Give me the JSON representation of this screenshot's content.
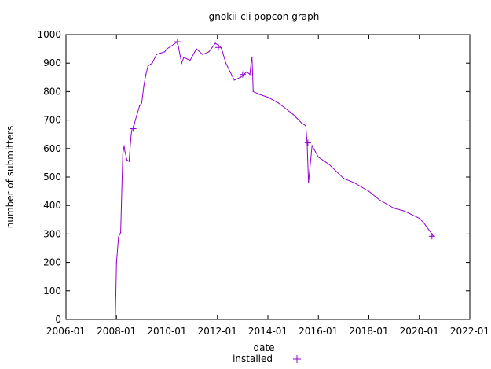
{
  "chart_data": {
    "type": "line",
    "title": "gnokii-cli popcon graph",
    "xlabel": "date",
    "ylabel": "number of submitters",
    "xlim": [
      "2006-01",
      "2022-01"
    ],
    "ylim": [
      0,
      1000
    ],
    "x_ticks": [
      "2006-01",
      "2008-01",
      "2010-01",
      "2012-01",
      "2014-01",
      "2016-01",
      "2018-01",
      "2020-01",
      "2022-01"
    ],
    "y_ticks": [
      0,
      100,
      200,
      300,
      400,
      500,
      600,
      700,
      800,
      900,
      1000
    ],
    "grid": false,
    "legend_position": "bottom-center",
    "series": [
      {
        "name": "installed",
        "color": "#9400d3",
        "marker": "plus",
        "x": [
          "2007-12-15",
          "2008-01-01",
          "2008-02-01",
          "2008-03-01",
          "2008-04-01",
          "2008-04-20",
          "2008-05-01",
          "2008-06-01",
          "2008-07-01",
          "2008-08-01",
          "2008-08-15",
          "2008-09-01",
          "2008-10-01",
          "2008-12-01",
          "2009-01-01",
          "2009-02-01",
          "2009-03-01",
          "2009-04-01",
          "2009-06-01",
          "2009-08-01",
          "2009-10-01",
          "2009-12-01",
          "2010-01-01",
          "2010-03-01",
          "2010-06-01",
          "2010-08-01",
          "2010-09-01",
          "2010-12-01",
          "2011-03-01",
          "2011-06-01",
          "2011-09-01",
          "2011-12-01",
          "2012-02-01",
          "2012-03-01",
          "2012-05-01",
          "2012-07-01",
          "2012-09-01",
          "2012-12-01",
          "2013-03-01",
          "2013-04-15",
          "2013-05-01",
          "2013-05-15",
          "2013-06-01",
          "2013-09-01",
          "2014-01-01",
          "2014-06-01",
          "2015-01-01",
          "2015-05-01",
          "2015-07-01",
          "2015-07-20",
          "2015-08-10",
          "2015-10-01",
          "2016-01-01",
          "2016-06-01",
          "2017-01-01",
          "2017-06-01",
          "2018-01-01",
          "2018-06-01",
          "2019-01-01",
          "2019-06-01",
          "2020-01-01",
          "2020-03-01",
          "2020-06-01",
          "2020-08-01"
        ],
        "values": [
          0,
          200,
          290,
          305,
          580,
          610,
          590,
          560,
          555,
          650,
          670,
          670,
          700,
          750,
          760,
          820,
          860,
          890,
          900,
          930,
          935,
          940,
          950,
          960,
          975,
          900,
          920,
          910,
          950,
          930,
          940,
          970,
          960,
          950,
          900,
          870,
          840,
          850,
          870,
          860,
          900,
          920,
          800,
          790,
          780,
          760,
          720,
          690,
          680,
          620,
          480,
          610,
          570,
          545,
          495,
          480,
          450,
          420,
          390,
          380,
          355,
          340,
          310,
          290
        ]
      }
    ],
    "point_markers": [
      {
        "x": "2008-09-01",
        "y": 670
      },
      {
        "x": "2010-06-01",
        "y": 975
      },
      {
        "x": "2012-01-15",
        "y": 955
      },
      {
        "x": "2013-01-01",
        "y": 860
      },
      {
        "x": "2015-08-01",
        "y": 620
      },
      {
        "x": "2020-07-01",
        "y": 292
      }
    ]
  }
}
